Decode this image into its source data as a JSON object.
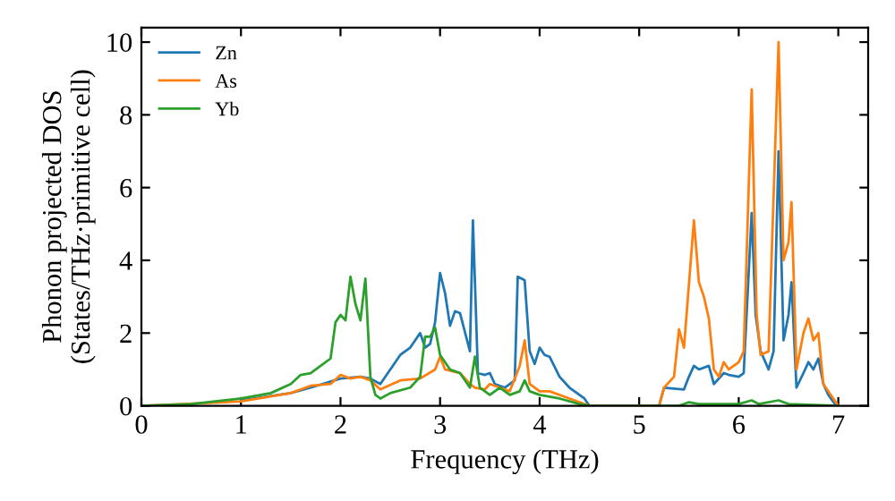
{
  "chart_data": {
    "type": "line",
    "xlabel": "Frequency (THz)",
    "ylabel": "Phonon projected DOS\n(States/THz·primitive cell)",
    "xlim": [
      0,
      7.3
    ],
    "ylim": [
      0,
      10.4
    ],
    "xticks": [
      0,
      1,
      2,
      3,
      4,
      5,
      6,
      7
    ],
    "yticks": [
      0,
      2,
      4,
      6,
      8,
      10
    ],
    "grid": false,
    "legend": "top left",
    "series": [
      {
        "name": "Zn",
        "color": "#1f77b4",
        "x": [
          1,
          1.5,
          1.7,
          2,
          2.2,
          2.3,
          2.4,
          2.5,
          2.6,
          2.7,
          2.8,
          2.85,
          2.9,
          2.95,
          3.0,
          3.05,
          3.1,
          3.15,
          3.2,
          3.3,
          3.33,
          3.38,
          3.45,
          3.5,
          3.55,
          3.65,
          3.75,
          3.78,
          3.85,
          3.9,
          3.95,
          4.0,
          4.05,
          4.1,
          4.2,
          4.3,
          4.45,
          4.5,
          5.0,
          5.2,
          5.25,
          5.45,
          5.5,
          5.55,
          5.6,
          5.7,
          5.75,
          5.85,
          5.9,
          6.0,
          6.05,
          6.13,
          6.17,
          6.22,
          6.3,
          6.35,
          6.4,
          6.45,
          6.5,
          6.53,
          6.58,
          6.65,
          6.7,
          6.75,
          6.8,
          6.85,
          6.9,
          6.98
        ],
        "values": [
          0.15,
          0.35,
          0.5,
          0.75,
          0.8,
          0.75,
          0.6,
          1.0,
          1.4,
          1.6,
          2.0,
          1.6,
          1.7,
          2.3,
          3.65,
          3.1,
          2.2,
          2.6,
          2.55,
          1.5,
          5.1,
          0.9,
          0.85,
          0.9,
          0.6,
          0.5,
          0.7,
          3.55,
          3.45,
          1.5,
          1.15,
          1.6,
          1.4,
          1.35,
          0.8,
          0.5,
          0.2,
          0,
          0,
          0,
          0.5,
          0.45,
          0.8,
          1.1,
          1.0,
          1.1,
          0.6,
          0.9,
          0.85,
          0.8,
          0.9,
          5.3,
          2.5,
          1.5,
          1.0,
          1.5,
          7.0,
          1.8,
          2.5,
          3.4,
          0.5,
          0.9,
          1.2,
          1.0,
          1.3,
          0.6,
          0.3,
          0
        ]
      },
      {
        "name": "As",
        "color": "#ff7f0e",
        "x": [
          0,
          1,
          1.5,
          1.7,
          1.9,
          2.0,
          2.1,
          2.2,
          2.3,
          2.4,
          2.6,
          2.8,
          2.95,
          3.0,
          3.05,
          3.2,
          3.3,
          3.35,
          3.45,
          3.5,
          3.6,
          3.7,
          3.8,
          3.85,
          3.9,
          4.0,
          4.1,
          4.3,
          4.5,
          5.2,
          5.25,
          5.35,
          5.4,
          5.45,
          5.55,
          5.6,
          5.65,
          5.7,
          5.75,
          5.8,
          5.85,
          5.9,
          6.0,
          6.05,
          6.13,
          6.18,
          6.22,
          6.3,
          6.4,
          6.45,
          6.5,
          6.53,
          6.58,
          6.65,
          6.7,
          6.75,
          6.8,
          6.85,
          6.95,
          7.0
        ],
        "values": [
          0,
          0.12,
          0.35,
          0.55,
          0.6,
          0.85,
          0.75,
          0.8,
          0.7,
          0.45,
          0.7,
          0.75,
          1.0,
          1.35,
          1.0,
          0.9,
          0.6,
          0.5,
          0.45,
          0.6,
          0.5,
          0.4,
          1.1,
          1.8,
          0.6,
          0.4,
          0.4,
          0.2,
          0,
          0,
          0.5,
          0.8,
          2.1,
          1.6,
          5.1,
          3.4,
          3.0,
          2.4,
          1.0,
          0.8,
          1.2,
          1.0,
          1.2,
          1.5,
          8.7,
          2.5,
          1.4,
          1.5,
          10.0,
          4.0,
          4.5,
          5.6,
          1.0,
          2.0,
          2.4,
          1.8,
          2.0,
          0.6,
          0.2,
          0
        ]
      },
      {
        "name": "Yb",
        "color": "#2ca02c",
        "x": [
          0,
          0.5,
          1.0,
          1.3,
          1.5,
          1.6,
          1.7,
          1.8,
          1.9,
          1.95,
          2.0,
          2.05,
          2.1,
          2.15,
          2.2,
          2.25,
          2.3,
          2.35,
          2.4,
          2.5,
          2.7,
          2.8,
          2.85,
          2.9,
          2.95,
          3.0,
          3.1,
          3.2,
          3.3,
          3.35,
          3.4,
          3.5,
          3.6,
          3.7,
          3.8,
          3.85,
          3.9,
          4.0,
          4.2,
          4.4,
          4.5,
          5.4,
          5.5,
          5.6,
          6.0,
          6.13,
          6.2,
          6.4,
          6.5,
          7.0
        ],
        "values": [
          0,
          0.05,
          0.2,
          0.35,
          0.6,
          0.85,
          0.9,
          1.1,
          1.3,
          2.3,
          2.5,
          2.35,
          3.55,
          2.8,
          2.35,
          3.5,
          0.8,
          0.3,
          0.2,
          0.35,
          0.5,
          0.8,
          1.9,
          1.9,
          2.15,
          1.4,
          1.0,
          0.9,
          0.5,
          1.35,
          0.5,
          0.3,
          0.5,
          0.3,
          0.4,
          0.7,
          0.4,
          0.3,
          0.2,
          0.05,
          0,
          0,
          0.1,
          0.05,
          0.05,
          0.15,
          0.05,
          0.15,
          0.05,
          0
        ]
      }
    ]
  }
}
